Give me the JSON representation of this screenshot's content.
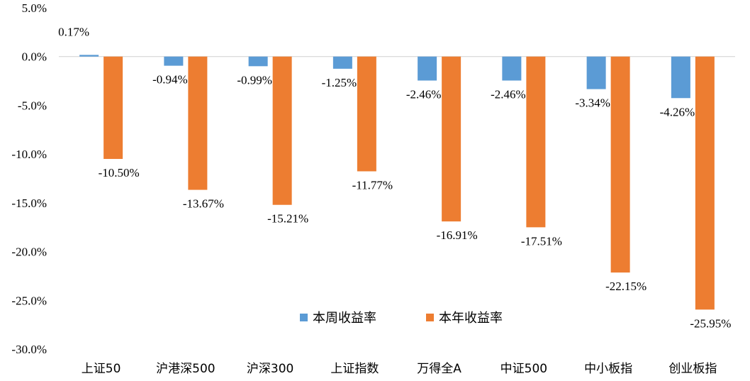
{
  "chart_data": {
    "type": "bar",
    "title": "",
    "xlabel": "",
    "ylabel": "",
    "ylim": [
      -30,
      5
    ],
    "y_ticks": [
      5,
      0,
      -5,
      -10,
      -15,
      -20,
      -25,
      -30
    ],
    "y_tick_labels": [
      "5.0%",
      "0.0%",
      "-5.0%",
      "-10.0%",
      "-15.0%",
      "-20.0%",
      "-25.0%",
      "-30.0%"
    ],
    "grid": false,
    "legend_position": "lower-center",
    "categories": [
      "上证50",
      "沪港深500",
      "沪深300",
      "上证指数",
      "万得全A",
      "中证500",
      "中小板指",
      "创业板指"
    ],
    "series": [
      {
        "name": "本周收益率",
        "color": "#5B9BD5",
        "values": [
          0.17,
          -0.94,
          -0.99,
          -1.25,
          -2.46,
          -2.46,
          -3.34,
          -4.26
        ],
        "labels": [
          "0.17%",
          "-0.94%",
          "-0.99%",
          "-1.25%",
          "-2.46%",
          "-2.46%",
          "-3.34%",
          "-4.26%"
        ]
      },
      {
        "name": "本年收益率",
        "color": "#ED7D31",
        "values": [
          -10.5,
          -13.67,
          -15.21,
          -11.77,
          -16.91,
          -17.51,
          -22.15,
          -25.95
        ],
        "labels": [
          "-10.50%",
          "-13.67%",
          "-15.21%",
          "-11.77%",
          "-16.91%",
          "-17.51%",
          "-22.15%",
          "-25.95%"
        ]
      }
    ]
  }
}
